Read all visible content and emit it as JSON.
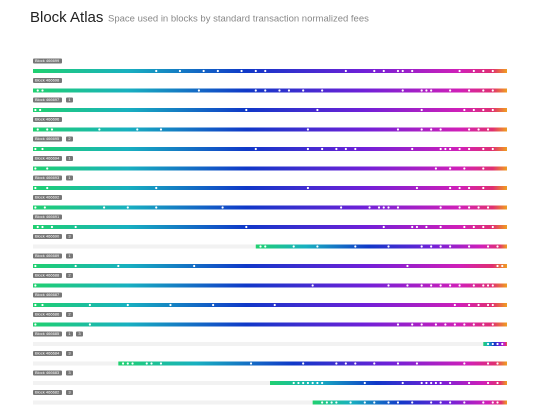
{
  "header": {
    "title": "Block Atlas",
    "subtitle": "Space used in blocks by standard transaction normalized fees"
  },
  "blocks": [
    {
      "label": "Block 466699",
      "badges": [],
      "start": 0,
      "dots": [
        26,
        31,
        36,
        39,
        44,
        47,
        49,
        66,
        72,
        74,
        77,
        78,
        80,
        90,
        93,
        95,
        97
      ]
    },
    {
      "label": "Block 466698",
      "badges": [],
      "start": 0,
      "dots": [
        1,
        2,
        35,
        47,
        49,
        52,
        54,
        57,
        61,
        78,
        82,
        83,
        84,
        88,
        92,
        95,
        97
      ]
    },
    {
      "label": "Block 466697",
      "badges": [
        "1"
      ],
      "start": 0,
      "dots": [
        0.5,
        1.5,
        45,
        60,
        82,
        91,
        93,
        95,
        97
      ]
    },
    {
      "label": "Block 466696",
      "badges": [],
      "start": 0,
      "dots": [
        1,
        3,
        4,
        14,
        22,
        27,
        58,
        77,
        82,
        84,
        86,
        92,
        94,
        96
      ]
    },
    {
      "label": "Block 466695",
      "badges": [
        "2"
      ],
      "start": 0,
      "dots": [
        0.5,
        2,
        47,
        58,
        61,
        64,
        66,
        68,
        80,
        86,
        87,
        88,
        90,
        92,
        95,
        97
      ]
    },
    {
      "label": "Block 466694",
      "badges": [
        "1"
      ],
      "start": 0,
      "dots": [
        0.5,
        3,
        85,
        88,
        91,
        95
      ]
    },
    {
      "label": "Block 466693",
      "badges": [
        "1"
      ],
      "start": 0,
      "dots": [
        0.5,
        3,
        26,
        58,
        81,
        88,
        90,
        92,
        95
      ]
    },
    {
      "label": "Block 466692",
      "badges": [],
      "start": 0,
      "dots": [
        0.5,
        2.5,
        15,
        20,
        26,
        40,
        65,
        71,
        73,
        74,
        75,
        77,
        86,
        90,
        92,
        94,
        96
      ]
    },
    {
      "label": "Block 466691",
      "badges": [],
      "start": 0,
      "dots": [
        1,
        2,
        4,
        9,
        45,
        74,
        80,
        81,
        83,
        86,
        91,
        93,
        95,
        97
      ]
    },
    {
      "label": "Block 466690",
      "badges": [
        "3"
      ],
      "start": 47,
      "dots": [
        48,
        49,
        55,
        60,
        68,
        75,
        82,
        84,
        86,
        88,
        92,
        96,
        98
      ]
    },
    {
      "label": "Block 466689",
      "badges": [
        "1"
      ],
      "start": 0,
      "dots": [
        0.5,
        9,
        18,
        34,
        79,
        98,
        99
      ]
    },
    {
      "label": "Block 466688",
      "badges": [
        "2"
      ],
      "start": 0,
      "dots": [
        0.5,
        59,
        75,
        79,
        82,
        84,
        86,
        88,
        90,
        93,
        95,
        96,
        97
      ]
    },
    {
      "label": "Block 466687",
      "badges": [],
      "start": 0,
      "dots": [
        0.5,
        2,
        12,
        20,
        29,
        38,
        51,
        89,
        92,
        94,
        96,
        97
      ]
    },
    {
      "label": "Block 466686",
      "badges": [
        "2"
      ],
      "start": 0,
      "dots": [
        0.5,
        12,
        77,
        80,
        82,
        85,
        87,
        89,
        91,
        93,
        95,
        97
      ]
    },
    {
      "label": "Block 466685",
      "badges": [
        "1",
        "3"
      ],
      "start": 95,
      "dots": [
        96,
        97,
        98,
        99
      ]
    },
    {
      "label": "Block 466684",
      "badges": [
        "3"
      ],
      "start": 18,
      "dots": [
        19,
        20,
        21,
        24,
        25,
        27,
        46,
        57,
        64,
        66,
        68,
        72,
        77,
        81,
        91,
        96,
        98
      ]
    },
    {
      "label": "Block 466683",
      "badges": [
        "3"
      ],
      "start": 50,
      "dots": [
        55,
        56,
        57,
        58,
        59,
        60,
        61,
        70,
        78,
        82,
        83,
        84,
        85,
        86,
        88,
        92,
        96,
        98
      ]
    },
    {
      "label": "Block 466682",
      "badges": [
        "3"
      ],
      "start": 59,
      "dots": [
        61,
        62,
        63,
        64,
        67,
        70,
        72,
        75,
        77,
        80,
        84,
        86,
        88,
        91,
        95,
        97,
        98
      ]
    }
  ]
}
